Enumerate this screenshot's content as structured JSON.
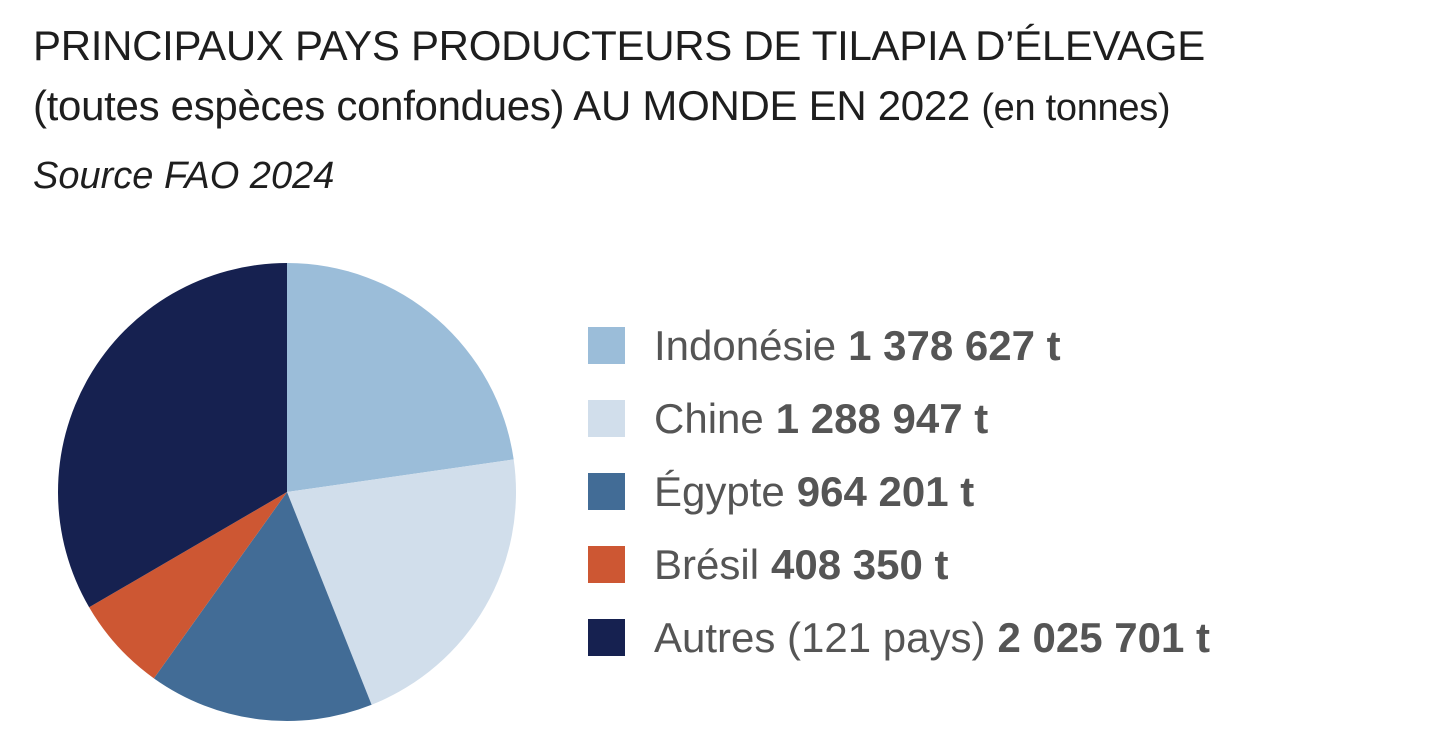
{
  "title": {
    "line1": "PRINCIPAUX PAYS PRODUCTEURS DE TILAPIA D’ÉLEVAGE",
    "line2": "(toutes espèces confondues) AU MONDE EN 2022",
    "unit": "(en tonnes)"
  },
  "source": "Source FAO 2024",
  "chart_data": {
    "type": "pie",
    "title": "PRINCIPAUX PAYS PRODUCTEURS DE TILAPIA D’ÉLEVAGE (toutes espèces confondues) AU MONDE EN 2022 (en tonnes)",
    "subtitle": "Source FAO 2024",
    "legend_position": "right",
    "slices": [
      {
        "label": "Indonésie",
        "value": 1378627,
        "value_text": "1 378 627 t",
        "color": "#9bbdd9"
      },
      {
        "label": "Chine",
        "value": 1288947,
        "value_text": "1 288 947 t",
        "color": "#d1deeb"
      },
      {
        "label": "Égypte",
        "value": 964201,
        "value_text": "964 201 t",
        "color": "#426c96"
      },
      {
        "label": "Brésil",
        "value": 408350,
        "value_text": "408 350 t",
        "color": "#cd5733"
      },
      {
        "label": "Autres (121 pays)",
        "value": 2025701,
        "value_text": "2 025 701 t",
        "color": "#162150"
      }
    ]
  }
}
